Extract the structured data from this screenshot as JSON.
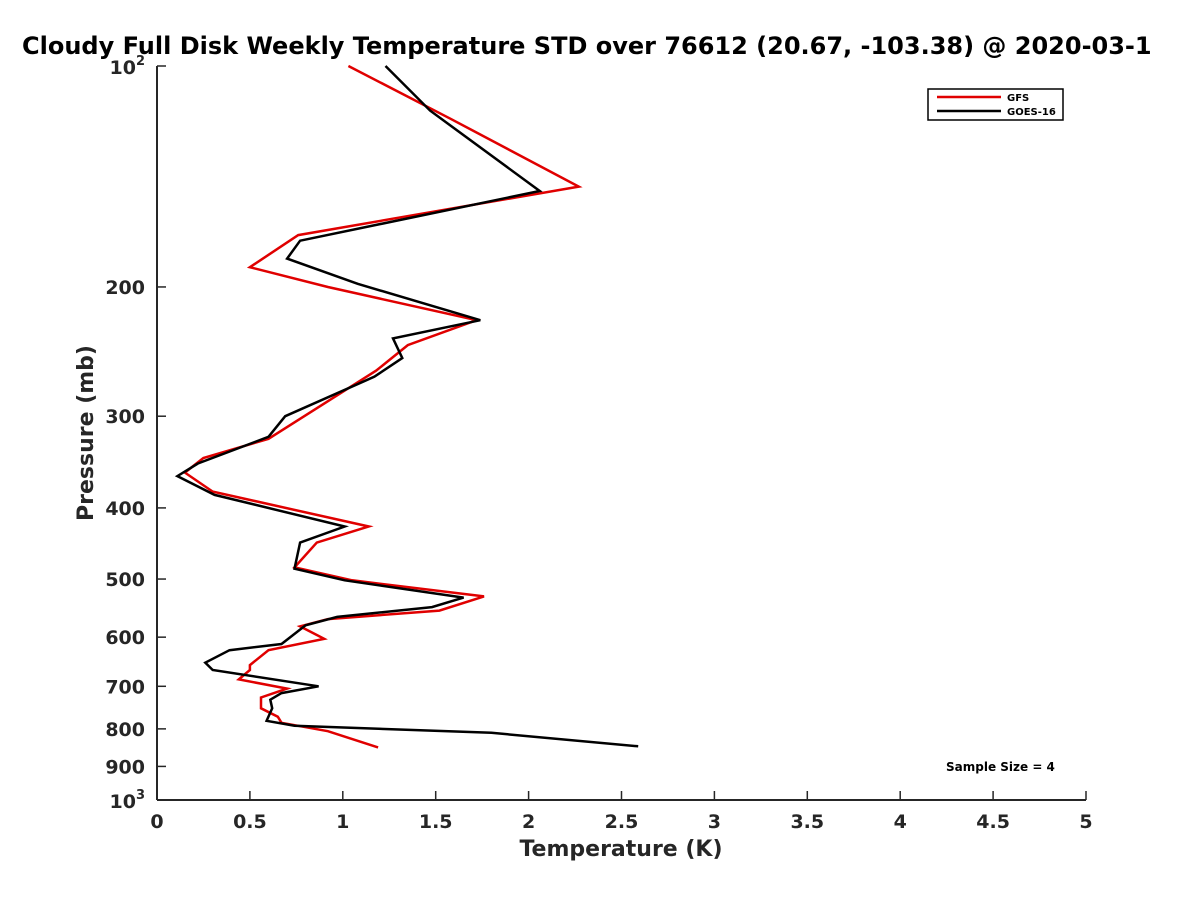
{
  "chart_data": {
    "type": "line",
    "title": "Cloudy Full Disk Weekly Temperature STD over 76612 (20.67, -103.38) @ 2020-03-1",
    "xlabel": "Temperature (K)",
    "ylabel": "Pressure (mb)",
    "xlim": [
      0,
      5
    ],
    "ylim": [
      100,
      1000
    ],
    "yscale": "log",
    "yreversed": true,
    "x_ticks": [
      0,
      0.5,
      1,
      1.5,
      2,
      2.5,
      3,
      3.5,
      4,
      4.5,
      5
    ],
    "x_tick_labels": [
      "0",
      "0.5",
      "1",
      "1.5",
      "2",
      "2.5",
      "3",
      "3.5",
      "4",
      "4.5",
      "5"
    ],
    "y_ticks": [
      200,
      300,
      400,
      500,
      600,
      700,
      800,
      900
    ],
    "y_tick_labels": [
      "200",
      "300",
      "400",
      "500",
      "600",
      "700",
      "800",
      "900"
    ],
    "y_tick_power_labels": [
      {
        "value": 100,
        "base": "10",
        "exp": "2"
      },
      {
        "value": 1000,
        "base": "10",
        "exp": "3"
      }
    ],
    "legend": {
      "position": "top-right"
    },
    "annotation": "Sample Size = 4",
    "series": [
      {
        "name": "GFS",
        "color": "#e00000",
        "x": [
          1.03,
          1.58,
          2.27,
          0.76,
          0.5,
          0.92,
          1.72,
          1.35,
          1.18,
          0.6,
          0.25,
          0.15,
          0.3,
          1.14,
          0.86,
          0.74,
          1.05,
          1.76,
          1.52,
          0.92,
          0.77,
          0.9,
          0.6,
          0.5,
          0.5,
          0.44,
          0.7,
          0.56,
          0.56,
          0.65,
          0.67,
          0.92,
          1.19
        ],
        "y": [
          100,
          118,
          146,
          170,
          188,
          200,
          222,
          240,
          260,
          322,
          342,
          358,
          380,
          424,
          446,
          482,
          502,
          528,
          552,
          567,
          580,
          603,
          625,
          655,
          665,
          685,
          705,
          725,
          750,
          770,
          785,
          806,
          848
        ]
      },
      {
        "name": "GOES-16",
        "color": "#000000",
        "x": [
          1.23,
          1.47,
          2.06,
          0.77,
          0.7,
          1.08,
          1.74,
          1.27,
          1.32,
          1.17,
          0.69,
          0.6,
          0.22,
          0.11,
          0.31,
          1.01,
          0.77,
          0.74,
          1.01,
          1.65,
          1.48,
          0.97,
          0.8,
          0.67,
          0.39,
          0.26,
          0.3,
          0.87,
          0.67,
          0.61,
          0.62,
          0.59,
          0.74,
          1.8,
          2.59
        ],
        "y": [
          100,
          115,
          148,
          173,
          183,
          198,
          222,
          235,
          250,
          265,
          300,
          320,
          348,
          362,
          384,
          424,
          446,
          484,
          502,
          530,
          546,
          563,
          578,
          613,
          625,
          650,
          665,
          700,
          715,
          730,
          750,
          780,
          792,
          810,
          845
        ]
      }
    ]
  }
}
